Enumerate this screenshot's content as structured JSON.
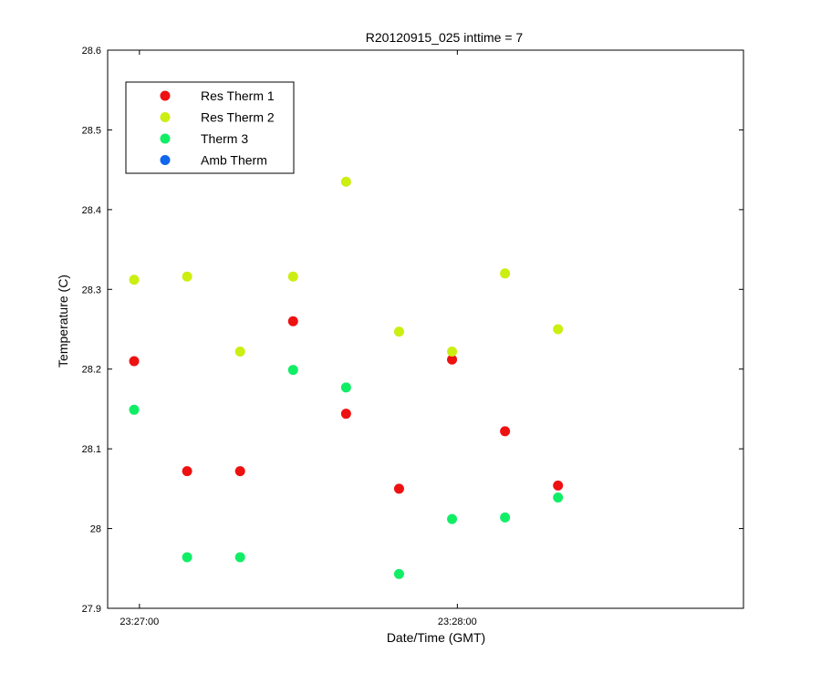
{
  "chart_data": {
    "type": "scatter",
    "title": "R20120915_025 inttime = 7",
    "xlabel": "Date/Time (GMT)",
    "ylabel": "Temperature (C)",
    "ylim": [
      27.9,
      28.6
    ],
    "yticks": [
      "27.9",
      "28",
      "28.1",
      "28.2",
      "28.3",
      "28.4",
      "28.5",
      "28.6"
    ],
    "xlim": [
      "23:26:54",
      "23:28:54"
    ],
    "xticks": [
      "23:27:00",
      "23:28:00"
    ],
    "grid": false,
    "legend_position": "top-left",
    "series": [
      {
        "name": "Res Therm 1",
        "color": "#ee1111",
        "points": [
          {
            "x": "23:26:59",
            "y": 28.21
          },
          {
            "x": "23:27:09",
            "y": 28.072
          },
          {
            "x": "23:27:19",
            "y": 28.072
          },
          {
            "x": "23:27:29",
            "y": 28.26
          },
          {
            "x": "23:27:39",
            "y": 28.144
          },
          {
            "x": "23:27:49",
            "y": 28.05
          },
          {
            "x": "23:27:59",
            "y": 28.212
          },
          {
            "x": "23:28:09",
            "y": 28.122
          },
          {
            "x": "23:28:19",
            "y": 28.054
          }
        ]
      },
      {
        "name": "Res Therm 2",
        "color": "#ccee11",
        "points": [
          {
            "x": "23:26:59",
            "y": 28.312
          },
          {
            "x": "23:27:09",
            "y": 28.316
          },
          {
            "x": "23:27:19",
            "y": 28.222
          },
          {
            "x": "23:27:29",
            "y": 28.316
          },
          {
            "x": "23:27:39",
            "y": 28.435
          },
          {
            "x": "23:27:49",
            "y": 28.247
          },
          {
            "x": "23:27:59",
            "y": 28.222
          },
          {
            "x": "23:28:09",
            "y": 28.32
          },
          {
            "x": "23:28:19",
            "y": 28.25
          }
        ]
      },
      {
        "name": "Therm 3",
        "color": "#11ee66",
        "points": [
          {
            "x": "23:26:59",
            "y": 28.149
          },
          {
            "x": "23:27:09",
            "y": 27.964
          },
          {
            "x": "23:27:19",
            "y": 27.964
          },
          {
            "x": "23:27:29",
            "y": 28.199
          },
          {
            "x": "23:27:39",
            "y": 28.177
          },
          {
            "x": "23:27:49",
            "y": 27.943
          },
          {
            "x": "23:27:59",
            "y": 28.012
          },
          {
            "x": "23:28:09",
            "y": 28.014
          },
          {
            "x": "23:28:19",
            "y": 28.039
          }
        ]
      },
      {
        "name": "Amb Therm",
        "color": "#1166ee",
        "points": []
      }
    ]
  }
}
